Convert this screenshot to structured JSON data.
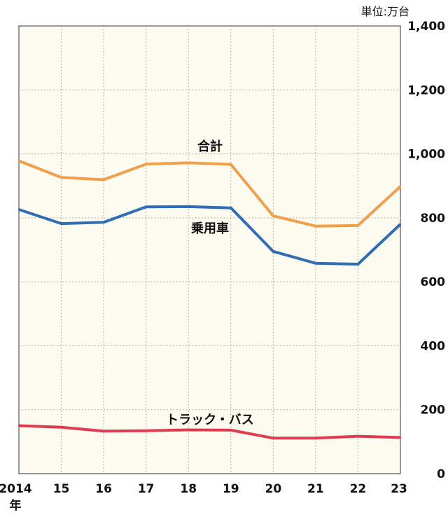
{
  "chart_data": {
    "type": "line",
    "unit_label": "単位:万台",
    "x": [
      "2014",
      "15",
      "16",
      "17",
      "18",
      "19",
      "20",
      "21",
      "22",
      "23"
    ],
    "x_suffix": "年",
    "ylim": [
      0,
      1400
    ],
    "yticks": [
      0,
      200,
      400,
      600,
      800,
      1000,
      1200,
      1400
    ],
    "ytick_labels": [
      "0",
      "200",
      "400",
      "600",
      "800",
      "1,000",
      "1,200",
      "1,400"
    ],
    "grid": true,
    "series": [
      {
        "name": "合計",
        "color": "#f0a04b",
        "values": [
          978,
          926,
          919,
          968,
          972,
          967,
          806,
          774,
          776,
          898
        ]
      },
      {
        "name": "乗用車",
        "color": "#2f6db5",
        "values": [
          826,
          782,
          786,
          834,
          835,
          831,
          695,
          658,
          655,
          780
        ]
      },
      {
        "name": "トラック・バス",
        "color": "#e03b4f",
        "values": [
          150,
          145,
          133,
          134,
          137,
          136,
          111,
          111,
          117,
          113
        ]
      }
    ]
  }
}
